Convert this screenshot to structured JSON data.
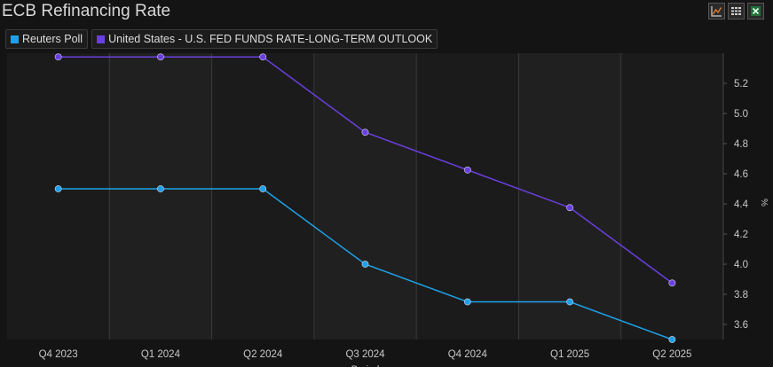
{
  "window": {
    "title": "ECB Refinancing Rate"
  },
  "toolbar": {
    "buttons": [
      {
        "icon": "line-chart-icon"
      },
      {
        "icon": "grid-table-icon"
      },
      {
        "icon": "excel-icon"
      }
    ]
  },
  "colors": {
    "reuters": "#1ea1e6",
    "fed": "#6a3fe0",
    "background": "#141414",
    "band_dark": "#1b1b1b",
    "band_light": "#202020",
    "grid": "#3a3a3a",
    "chart_icon": "#e07a2a",
    "excel_icon": "#2ea043"
  },
  "chart_data": {
    "type": "line",
    "title": "ECB Refinancing Rate",
    "xlabel": "Period",
    "ylabel": "%",
    "categories": [
      "Q4 2023",
      "Q1 2024",
      "Q2 2024",
      "Q3 2024",
      "Q4 2024",
      "Q1 2025",
      "Q2 2025"
    ],
    "ylim": [
      3.5,
      5.4
    ],
    "yticks": [
      "3.6",
      "3.8",
      "4.0",
      "4.2",
      "4.4",
      "4.6",
      "4.8",
      "5.0",
      "5.2"
    ],
    "grid": true,
    "legend_position": "top-left",
    "series": [
      {
        "name": "Reuters Poll",
        "values": [
          4.5,
          4.5,
          4.5,
          4.0,
          3.75,
          3.75,
          3.5
        ]
      },
      {
        "name": "United States - U.S. FED FUNDS RATE-LONG-TERM OUTLOOK",
        "values": [
          5.375,
          5.375,
          5.375,
          4.875,
          4.625,
          4.375,
          3.875
        ]
      }
    ]
  }
}
